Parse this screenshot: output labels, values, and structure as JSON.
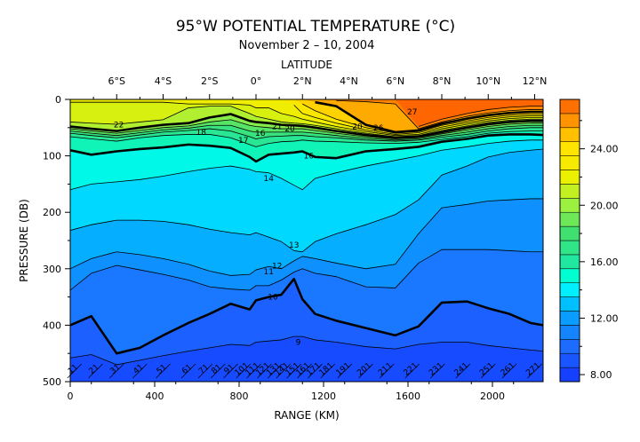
{
  "chart_data": {
    "type": "heatmap",
    "title": "95°W POTENTIAL TEMPERATURE (°C)",
    "subtitle": "November 2 – 10, 2004",
    "xlabel": "RANGE (KM)",
    "ylabel": "PRESSURE (DB)",
    "top_axis_label": "LATITUDE",
    "xlim": [
      0,
      2240
    ],
    "ylim": [
      500,
      0
    ],
    "x_ticks": [
      0,
      400,
      800,
      1200,
      1600,
      2000
    ],
    "x_tick_labels": [
      "0",
      "400",
      "800",
      "1200",
      "1600",
      "2000"
    ],
    "y_ticks": [
      0,
      100,
      200,
      300,
      400,
      500
    ],
    "y_tick_labels": [
      "0",
      "100",
      "200",
      "300",
      "400",
      "500"
    ],
    "latitude_ticks": [
      {
        "label": "6°S",
        "x": 220
      },
      {
        "label": "4°S",
        "x": 440
      },
      {
        "label": "2°S",
        "x": 660
      },
      {
        "label": "0°",
        "x": 880
      },
      {
        "label": "2°N",
        "x": 1100
      },
      {
        "label": "4°N",
        "x": 1320
      },
      {
        "label": "6°N",
        "x": 1540
      },
      {
        "label": "8°N",
        "x": 1760
      },
      {
        "label": "10°N",
        "x": 1980
      },
      {
        "label": "12°N",
        "x": 2200
      }
    ],
    "colorbar": {
      "range": [
        7.5,
        27.5
      ],
      "step": 1,
      "tick_values": [
        8,
        12,
        16,
        20,
        24
      ],
      "tick_labels": [
        "8.00",
        "12.00",
        "16.00",
        "20.00",
        "24.00"
      ]
    },
    "contour_levels": [
      8,
      9,
      10,
      11,
      12,
      13,
      14,
      15,
      16,
      17,
      18,
      19,
      20,
      21,
      22,
      23,
      24,
      25,
      26,
      27
    ],
    "bold_contours": [
      10,
      15,
      20,
      25
    ],
    "contour_labels": [
      {
        "text": "22",
        "x": 230,
        "p": 45
      },
      {
        "text": "18",
        "x": 620,
        "p": 58
      },
      {
        "text": "17",
        "x": 820,
        "p": 72
      },
      {
        "text": "16",
        "x": 900,
        "p": 60
      },
      {
        "text": "20",
        "x": 1040,
        "p": 52
      },
      {
        "text": "21",
        "x": 980,
        "p": 48
      },
      {
        "text": "20",
        "x": 1360,
        "p": 48
      },
      {
        "text": "26",
        "x": 1460,
        "p": 50
      },
      {
        "text": "27",
        "x": 1620,
        "p": 22
      },
      {
        "text": "16",
        "x": 1130,
        "p": 100
      },
      {
        "text": "14",
        "x": 940,
        "p": 140
      },
      {
        "text": "13",
        "x": 1060,
        "p": 258
      },
      {
        "text": "12",
        "x": 980,
        "p": 295
      },
      {
        "text": "11",
        "x": 940,
        "p": 305
      },
      {
        "text": "10",
        "x": 960,
        "p": 350
      },
      {
        "text": "9",
        "x": 1080,
        "p": 430
      }
    ],
    "station_labels": [
      "11",
      "21",
      "31",
      "41",
      "51",
      "61",
      "71",
      "81",
      "91",
      "101",
      "111",
      "121",
      "131",
      "141",
      "151",
      "161",
      "171",
      "181",
      "191",
      "201",
      "211",
      "221",
      "231",
      "241",
      "251",
      "261",
      "271"
    ],
    "station_x": [
      20,
      120,
      220,
      330,
      440,
      560,
      640,
      700,
      760,
      820,
      870,
      920,
      970,
      1010,
      1060,
      1110,
      1160,
      1220,
      1300,
      1400,
      1500,
      1620,
      1740,
      1860,
      1980,
      2080,
      2200
    ],
    "isotherm_depths": {
      "x": [
        0,
        100,
        220,
        330,
        440,
        560,
        660,
        760,
        850,
        880,
        940,
        1000,
        1060,
        1100,
        1160,
        1260,
        1400,
        1540,
        1650,
        1760,
        1880,
        1980,
        2080,
        2180,
        2240
      ],
      "27": [
        null,
        null,
        null,
        null,
        null,
        null,
        null,
        null,
        null,
        null,
        null,
        null,
        null,
        null,
        null,
        null,
        null,
        null,
        48,
        35,
        25,
        18,
        14,
        12,
        12
      ],
      "26": [
        null,
        null,
        null,
        null,
        null,
        null,
        null,
        null,
        null,
        null,
        null,
        null,
        null,
        null,
        null,
        2,
        4,
        8,
        52,
        40,
        30,
        24,
        20,
        18,
        18
      ],
      "25": [
        null,
        null,
        null,
        null,
        null,
        null,
        null,
        null,
        null,
        null,
        null,
        null,
        null,
        null,
        5,
        12,
        45,
        58,
        55,
        43,
        34,
        28,
        24,
        22,
        22
      ],
      "24": [
        null,
        null,
        null,
        null,
        null,
        null,
        null,
        null,
        null,
        null,
        null,
        null,
        null,
        8,
        20,
        35,
        50,
        60,
        57,
        46,
        38,
        32,
        28,
        26,
        26
      ],
      "23": [
        null,
        null,
        null,
        null,
        null,
        null,
        null,
        null,
        null,
        null,
        null,
        null,
        10,
        25,
        32,
        42,
        54,
        62,
        59,
        49,
        41,
        35,
        31,
        29,
        29
      ],
      "22": [
        5,
        5,
        5,
        5,
        5,
        8,
        8,
        8,
        10,
        15,
        15,
        25,
        30,
        35,
        40,
        48,
        57,
        64,
        62,
        52,
        44,
        38,
        34,
        32,
        32
      ],
      "21": [
        40,
        42,
        44,
        40,
        36,
        15,
        12,
        12,
        25,
        30,
        35,
        40,
        42,
        43,
        46,
        52,
        60,
        66,
        64,
        55,
        47,
        41,
        37,
        35,
        35
      ],
      "20": [
        48,
        52,
        56,
        50,
        45,
        42,
        32,
        26,
        38,
        40,
        42,
        45,
        46,
        47,
        50,
        56,
        63,
        68,
        66,
        58,
        50,
        44,
        40,
        38,
        38
      ],
      "19": [
        52,
        56,
        60,
        55,
        50,
        47,
        40,
        36,
        46,
        48,
        50,
        52,
        52,
        52,
        55,
        60,
        66,
        70,
        68,
        61,
        54,
        48,
        44,
        42,
        42
      ],
      "18": [
        56,
        60,
        64,
        59,
        54,
        51,
        46,
        46,
        56,
        58,
        58,
        58,
        58,
        58,
        60,
        64,
        69,
        72,
        70,
        64,
        58,
        52,
        48,
        46,
        46
      ],
      "17": [
        60,
        64,
        68,
        63,
        58,
        55,
        52,
        56,
        66,
        70,
        66,
        65,
        64,
        64,
        66,
        68,
        72,
        74,
        72,
        67,
        62,
        56,
        52,
        50,
        50
      ],
      "16": [
        66,
        70,
        74,
        68,
        64,
        62,
        62,
        68,
        80,
        84,
        78,
        75,
        74,
        72,
        74,
        75,
        77,
        78,
        76,
        71,
        66,
        60,
        57,
        56,
        56
      ],
      "15": [
        90,
        98,
        92,
        88,
        85,
        80,
        82,
        86,
        102,
        110,
        98,
        96,
        94,
        92,
        102,
        104,
        92,
        88,
        84,
        75,
        70,
        64,
        62,
        62,
        63
      ],
      "14": [
        160,
        150,
        146,
        142,
        136,
        128,
        122,
        118,
        124,
        128,
        130,
        140,
        152,
        160,
        140,
        130,
        118,
        108,
        100,
        90,
        84,
        78,
        74,
        72,
        72
      ],
      "13": [
        232,
        222,
        214,
        214,
        216,
        222,
        230,
        236,
        240,
        236,
        244,
        252,
        268,
        270,
        252,
        238,
        222,
        204,
        178,
        134,
        118,
        102,
        94,
        90,
        88
      ],
      "12": [
        300,
        282,
        270,
        275,
        282,
        292,
        304,
        312,
        310,
        302,
        296,
        300,
        286,
        278,
        282,
        290,
        300,
        292,
        238,
        192,
        186,
        180,
        178,
        176,
        176
      ],
      "11": [
        338,
        308,
        294,
        302,
        310,
        320,
        332,
        336,
        338,
        330,
        330,
        320,
        306,
        300,
        308,
        314,
        332,
        334,
        290,
        266,
        266,
        266,
        268,
        270,
        270
      ],
      "10": [
        400,
        384,
        450,
        440,
        418,
        396,
        380,
        362,
        372,
        356,
        350,
        346,
        318,
        354,
        380,
        392,
        405,
        418,
        402,
        360,
        358,
        370,
        380,
        396,
        400
      ],
      "9": [
        458,
        452,
        470,
        462,
        454,
        446,
        440,
        434,
        436,
        430,
        428,
        426,
        420,
        420,
        426,
        430,
        438,
        442,
        434,
        430,
        430,
        436,
        440,
        444,
        446
      ],
      "8": [
        500,
        500,
        500,
        500,
        500,
        500,
        500,
        500,
        500,
        500,
        500,
        500,
        500,
        500,
        500,
        500,
        500,
        500,
        500,
        500,
        500,
        500,
        500,
        500,
        500
      ]
    }
  }
}
